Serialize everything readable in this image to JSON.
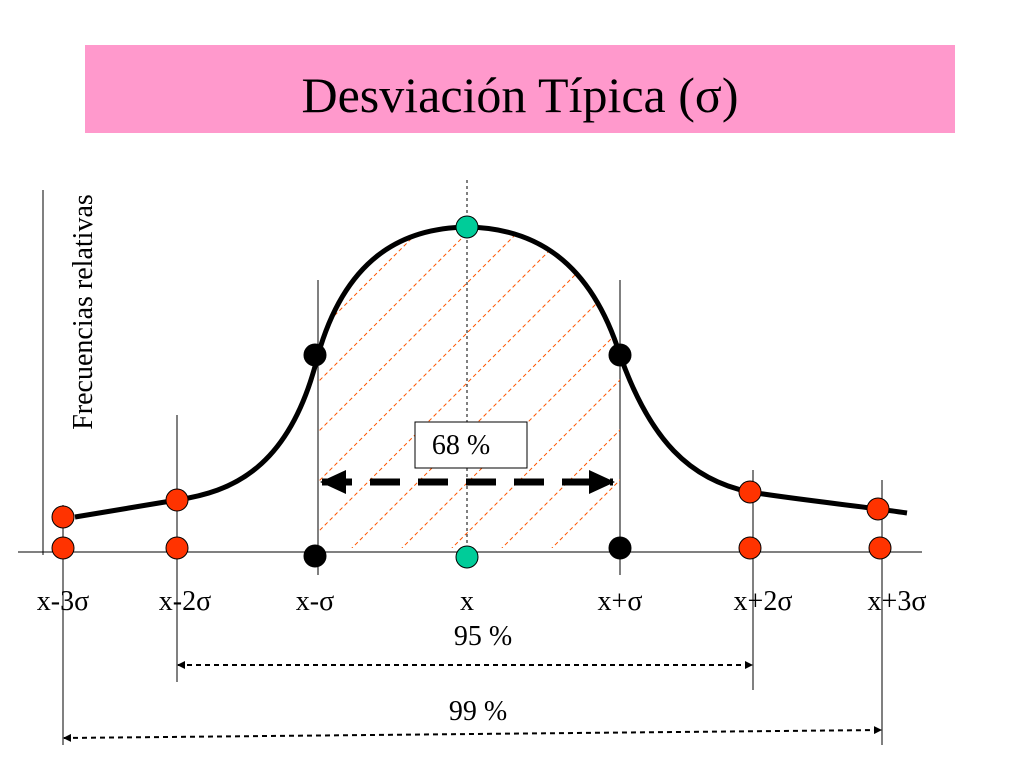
{
  "title": "Desviación Típica (σ)",
  "y_axis_label": "Frecuencias relativas",
  "x_labels": [
    "x-3σ",
    "x-2σ",
    "x-σ",
    "x",
    "x+σ",
    "x+2σ",
    "x+3σ"
  ],
  "annotations": {
    "inner": "68 %",
    "middle": "95 %",
    "outer": "99 %"
  }
}
